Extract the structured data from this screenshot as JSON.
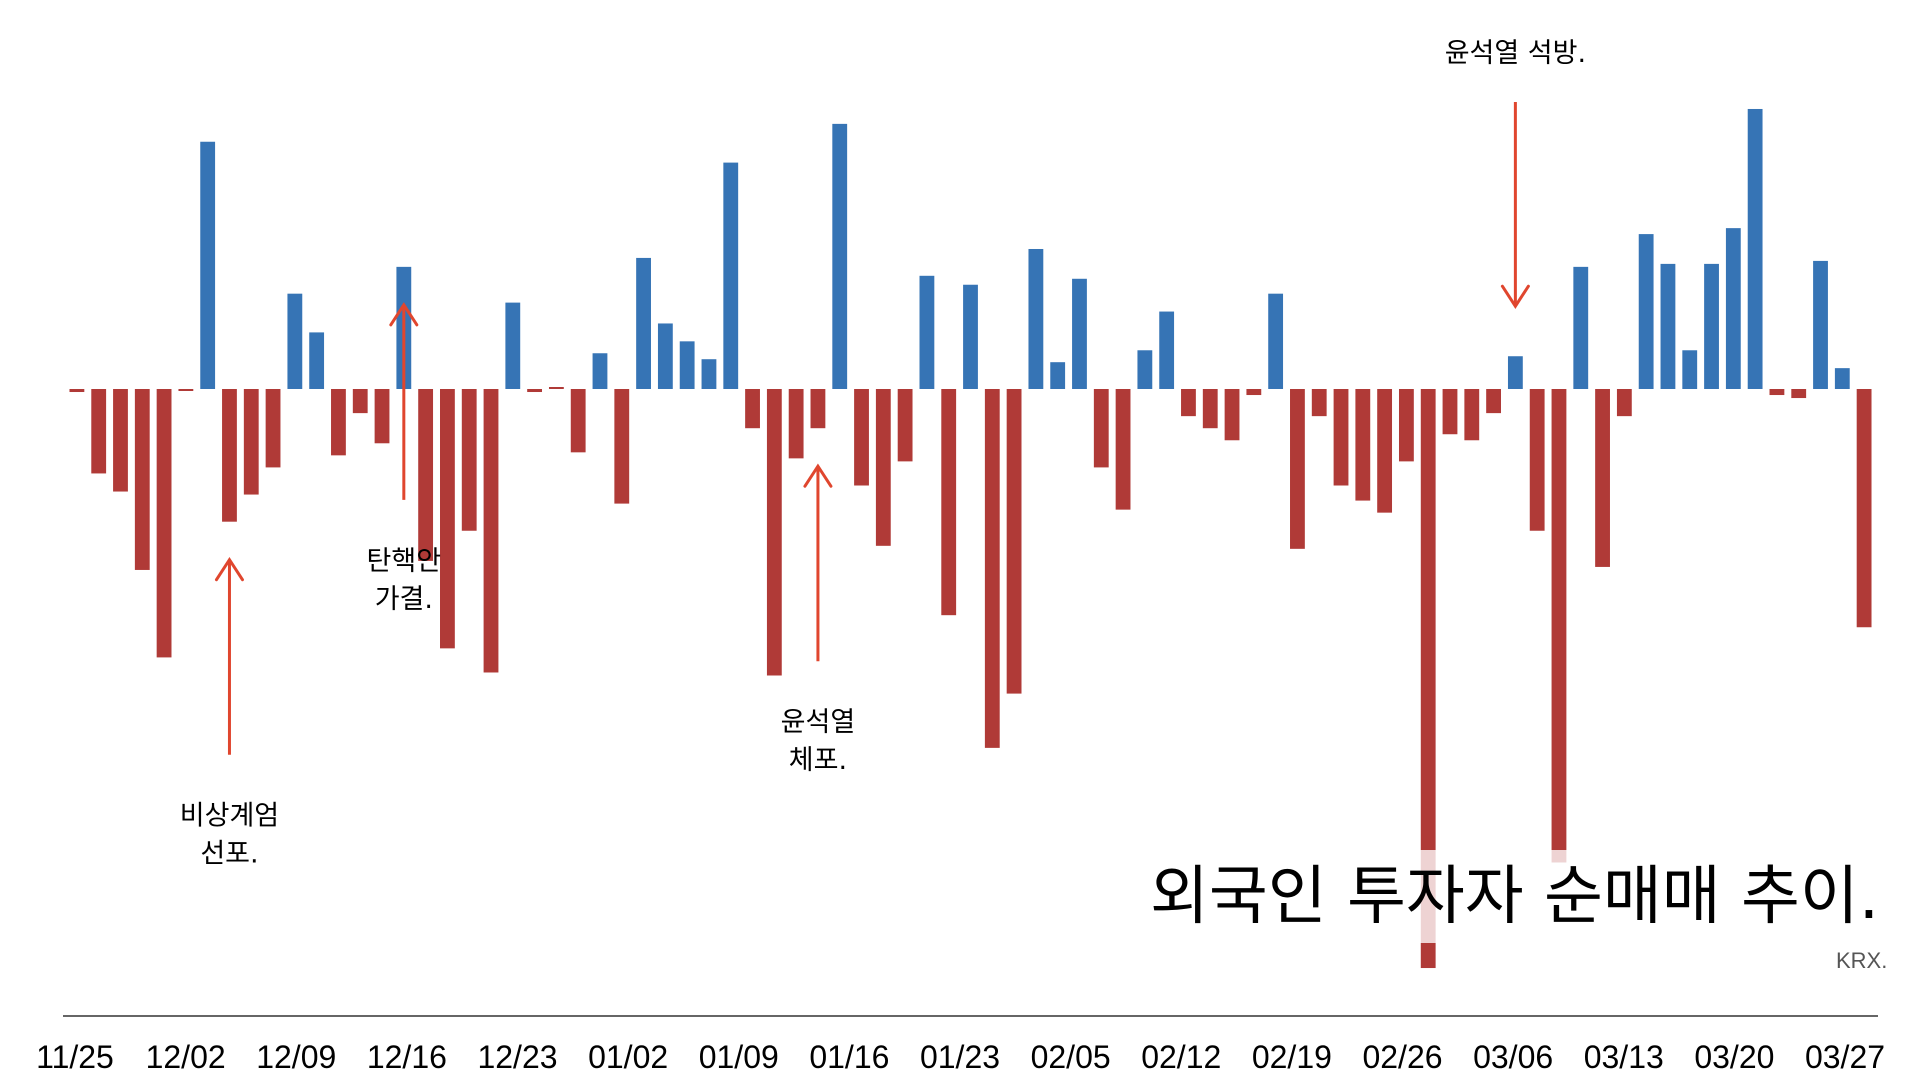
{
  "chart_data": {
    "type": "bar",
    "title": "외국인 투자자 순매매 추이.",
    "source": "KRX.",
    "xlabel": "",
    "ylabel": "",
    "ylim": [
      -190,
      95
    ],
    "grid": false,
    "legend": "none",
    "colors": {
      "positive": "#3674b5",
      "negative": "#b03a37",
      "arrow": "#e0462e"
    },
    "x_ticks": [
      "11/25",
      "12/02",
      "12/09",
      "12/16",
      "12/23",
      "01/02",
      "01/09",
      "01/16",
      "01/23",
      "02/05",
      "02/12",
      "02/19",
      "02/26",
      "03/06",
      "03/13",
      "03/20",
      "03/27"
    ],
    "values": [
      -1,
      -28,
      -34,
      -60,
      -89,
      -0.5,
      83,
      -44,
      -35,
      -26,
      32,
      19,
      -22,
      -8,
      -18,
      41,
      -57,
      -86,
      -47,
      -94,
      29,
      -1,
      0,
      -21,
      12,
      -38,
      44,
      22,
      16,
      10,
      76,
      -13,
      -95,
      -23,
      -13,
      89,
      -32,
      -52,
      -24,
      38,
      -75,
      35,
      -119,
      -101,
      47,
      9,
      37,
      -26,
      -40,
      13,
      26,
      -9,
      -13,
      -17,
      -2,
      32,
      -53,
      -9,
      -32,
      -37,
      -41,
      -24,
      -192,
      -15,
      -17,
      -8,
      11,
      -47,
      -157,
      41,
      -59,
      -9,
      52,
      42,
      13,
      42,
      54,
      94,
      -2,
      -3,
      43,
      7,
      -79
    ],
    "annotations": [
      {
        "lines": [
          "비상계엄",
          "선포."
        ],
        "bar": 7,
        "direction": "up"
      },
      {
        "lines": [
          "탄핵안",
          "가결."
        ],
        "bar": 15,
        "direction": "up"
      },
      {
        "lines": [
          "윤석열",
          "체포."
        ],
        "bar": 34,
        "direction": "up"
      },
      {
        "lines": [
          "윤석열 석방."
        ],
        "bar": 66,
        "direction": "down"
      }
    ]
  }
}
